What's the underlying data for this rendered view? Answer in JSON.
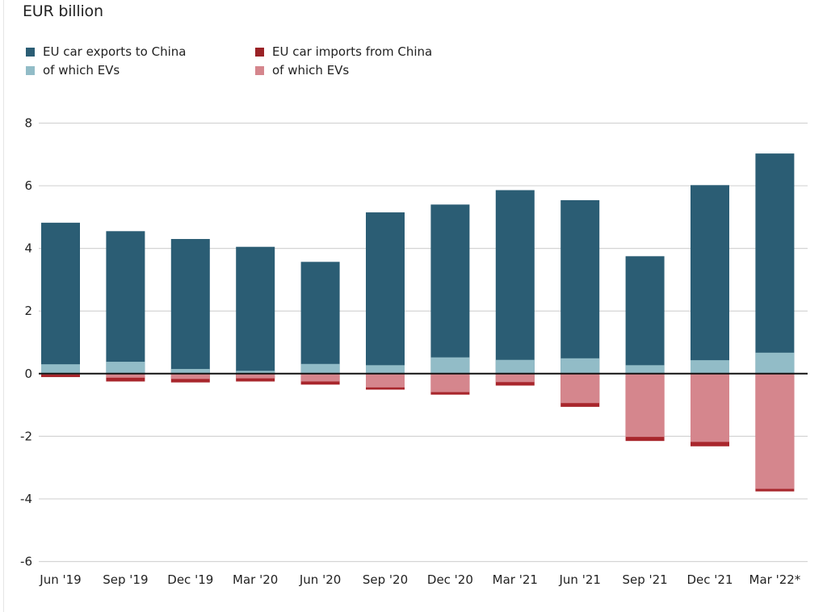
{
  "header": {
    "unit_title": "EUR billion"
  },
  "legend": [
    {
      "label": "EU car exports to China",
      "color": "#2b5d74",
      "position": "top-left"
    },
    {
      "label": "of which EVs",
      "color": "#92bcc7",
      "position": "top-left"
    },
    {
      "label": "EU car imports from China",
      "color": "#9a2226",
      "position": "top-left"
    },
    {
      "label": "of which EVs",
      "color": "#d5868d",
      "position": "top-left"
    }
  ],
  "chart_data": {
    "type": "bar",
    "title": "",
    "ylabel": "EUR billion",
    "xlabel": "",
    "ylim": [
      -6,
      8
    ],
    "yticks": [
      8,
      6,
      4,
      2,
      0,
      -2,
      -4,
      -6
    ],
    "ytick_labels": [
      "8",
      "6",
      "4",
      "2",
      "0",
      "-2",
      "-4",
      "-6"
    ],
    "grid": true,
    "legend_placement": "top-left",
    "stacking": "exports positive (EV portion at base), imports negative (EV portion adjacent to zero)",
    "categories": [
      "Jun '19",
      "Sep '19",
      "Dec '19",
      "Mar '20",
      "Jun '20",
      "Sep '20",
      "Dec '20",
      "Mar '21",
      "Jun '21",
      "Sep '21",
      "Dec '21",
      "Mar '22*"
    ],
    "series": [
      {
        "name": "EU car exports to China",
        "color": "#2b5d74",
        "values": [
          4.82,
          4.55,
          4.3,
          4.05,
          3.57,
          5.15,
          5.4,
          5.86,
          5.54,
          3.75,
          6.02,
          7.03
        ]
      },
      {
        "name": "of which EVs (exports)",
        "color": "#92bcc7",
        "values": [
          0.3,
          0.38,
          0.15,
          0.09,
          0.31,
          0.27,
          0.52,
          0.44,
          0.49,
          0.27,
          0.43,
          0.67
        ]
      },
      {
        "name": "EU car imports from China",
        "color": "#a8262c",
        "values": [
          -0.11,
          -0.25,
          -0.28,
          -0.25,
          -0.35,
          -0.51,
          -0.67,
          -0.38,
          -1.06,
          -2.15,
          -2.32,
          -3.76
        ]
      },
      {
        "name": "of which EVs (imports)",
        "color": "#d5868d",
        "values": [
          -0.03,
          -0.13,
          -0.17,
          -0.15,
          -0.25,
          -0.44,
          -0.59,
          -0.27,
          -0.94,
          -2.02,
          -2.18,
          -3.68
        ]
      }
    ]
  }
}
